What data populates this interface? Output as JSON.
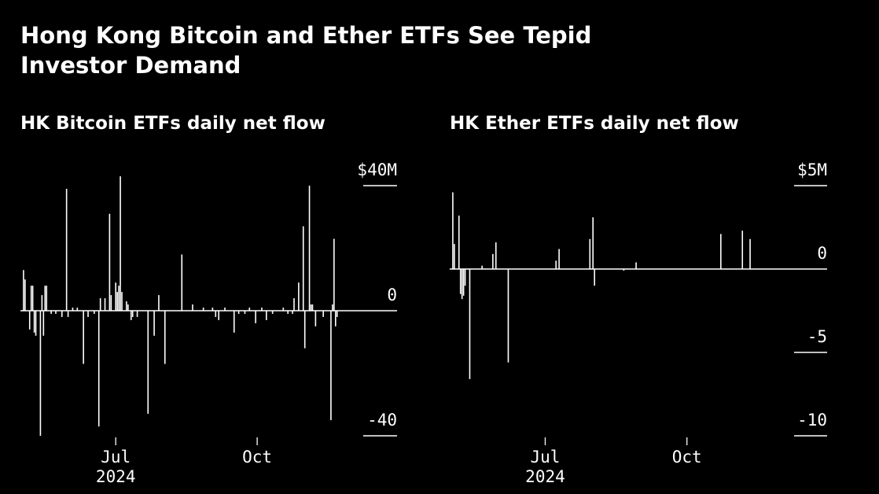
{
  "title": "Hong Kong Bitcoin and Ether ETFs See Tepid Investor Demand",
  "chart_data": [
    {
      "type": "bar",
      "title": "HK Bitcoin ETFs daily net flow",
      "color": "#ffffff",
      "background": "#000000",
      "ylim": [
        -40,
        40
      ],
      "y_ticks": [
        40,
        0,
        -40
      ],
      "y_tick_labels": [
        "$40M",
        "0",
        "-40"
      ],
      "x_ticks": [
        {
          "date": "2024-07-01",
          "label": "Jul",
          "sublabel": "2024"
        },
        {
          "date": "2024-10-01",
          "label": "Oct",
          "sublabel": ""
        }
      ],
      "x_range": [
        "2024-04-30",
        "2024-12-31"
      ],
      "series": [
        {
          "values": [
            [
              "2024-05-02",
              13
            ],
            [
              "2024-05-03",
              10
            ],
            [
              "2024-05-06",
              -6
            ],
            [
              "2024-05-07",
              8
            ],
            [
              "2024-05-08",
              8
            ],
            [
              "2024-05-09",
              -7
            ],
            [
              "2024-05-10",
              -8
            ],
            [
              "2024-05-13",
              -40
            ],
            [
              "2024-05-14",
              5
            ],
            [
              "2024-05-15",
              -8
            ],
            [
              "2024-05-16",
              8
            ],
            [
              "2024-05-17",
              8
            ],
            [
              "2024-05-20",
              -1
            ],
            [
              "2024-05-23",
              -1
            ],
            [
              "2024-05-27",
              -2
            ],
            [
              "2024-05-30",
              39
            ],
            [
              "2024-05-31",
              -2
            ],
            [
              "2024-06-03",
              1
            ],
            [
              "2024-06-06",
              1
            ],
            [
              "2024-06-10",
              -17
            ],
            [
              "2024-06-13",
              -2
            ],
            [
              "2024-06-17",
              -1
            ],
            [
              "2024-06-20",
              -37
            ],
            [
              "2024-06-21",
              4
            ],
            [
              "2024-06-24",
              4
            ],
            [
              "2024-06-27",
              31
            ],
            [
              "2024-06-28",
              5
            ],
            [
              "2024-07-01",
              9
            ],
            [
              "2024-07-02",
              6
            ],
            [
              "2024-07-03",
              8
            ],
            [
              "2024-07-04",
              43
            ],
            [
              "2024-07-05",
              6
            ],
            [
              "2024-07-08",
              3
            ],
            [
              "2024-07-09",
              2
            ],
            [
              "2024-07-11",
              -3
            ],
            [
              "2024-07-12",
              -2
            ],
            [
              "2024-07-15",
              -2
            ],
            [
              "2024-07-22",
              -33
            ],
            [
              "2024-07-26",
              -8
            ],
            [
              "2024-07-29",
              5
            ],
            [
              "2024-08-02",
              -17
            ],
            [
              "2024-08-13",
              18
            ],
            [
              "2024-08-20",
              2
            ],
            [
              "2024-08-27",
              1
            ],
            [
              "2024-09-02",
              1
            ],
            [
              "2024-09-04",
              -2
            ],
            [
              "2024-09-06",
              -3
            ],
            [
              "2024-09-10",
              1
            ],
            [
              "2024-09-16",
              -7
            ],
            [
              "2024-09-19",
              -1
            ],
            [
              "2024-09-23",
              -1
            ],
            [
              "2024-09-26",
              1
            ],
            [
              "2024-09-30",
              -4
            ],
            [
              "2024-10-04",
              1
            ],
            [
              "2024-10-07",
              -3
            ],
            [
              "2024-10-11",
              -1
            ],
            [
              "2024-10-18",
              1
            ],
            [
              "2024-10-21",
              -1
            ],
            [
              "2024-10-24",
              -1
            ],
            [
              "2024-10-25",
              4
            ],
            [
              "2024-10-28",
              9
            ],
            [
              "2024-10-31",
              27
            ],
            [
              "2024-11-01",
              -12
            ],
            [
              "2024-11-04",
              40
            ],
            [
              "2024-11-05",
              2
            ],
            [
              "2024-11-06",
              2
            ],
            [
              "2024-11-08",
              -5
            ],
            [
              "2024-11-13",
              -2
            ],
            [
              "2024-11-18",
              -35
            ],
            [
              "2024-11-19",
              2
            ],
            [
              "2024-11-20",
              23
            ],
            [
              "2024-11-21",
              -5
            ],
            [
              "2024-11-22",
              -2
            ]
          ]
        }
      ]
    },
    {
      "type": "bar",
      "title": "HK Ether ETFs daily net flow",
      "color": "#ffffff",
      "background": "#000000",
      "ylim": [
        -10,
        5
      ],
      "y_ticks": [
        5,
        0,
        -5,
        -10
      ],
      "y_tick_labels": [
        "$5M",
        "0",
        "-5",
        "-10"
      ],
      "x_ticks": [
        {
          "date": "2024-07-01",
          "label": "Jul",
          "sublabel": "2024"
        },
        {
          "date": "2024-10-01",
          "label": "Oct",
          "sublabel": ""
        }
      ],
      "x_range": [
        "2024-04-30",
        "2024-12-31"
      ],
      "series": [
        {
          "values": [
            [
              "2024-05-02",
              4.6
            ],
            [
              "2024-05-03",
              1.5
            ],
            [
              "2024-05-06",
              3.2
            ],
            [
              "2024-05-07",
              -1.5
            ],
            [
              "2024-05-08",
              -1.8
            ],
            [
              "2024-05-09",
              -1.6
            ],
            [
              "2024-05-10",
              -1.0
            ],
            [
              "2024-05-13",
              -6.6
            ],
            [
              "2024-05-21",
              0.2
            ],
            [
              "2024-05-28",
              0.9
            ],
            [
              "2024-05-30",
              1.6
            ],
            [
              "2024-06-07",
              -5.6
            ],
            [
              "2024-07-08",
              0.5
            ],
            [
              "2024-07-10",
              1.2
            ],
            [
              "2024-07-30",
              1.8
            ],
            [
              "2024-08-01",
              3.1
            ],
            [
              "2024-08-02",
              -1.0
            ],
            [
              "2024-08-21",
              -0.1
            ],
            [
              "2024-08-29",
              0.4
            ],
            [
              "2024-10-23",
              2.1
            ],
            [
              "2024-11-06",
              2.3
            ],
            [
              "2024-11-11",
              1.8
            ]
          ]
        }
      ]
    }
  ]
}
